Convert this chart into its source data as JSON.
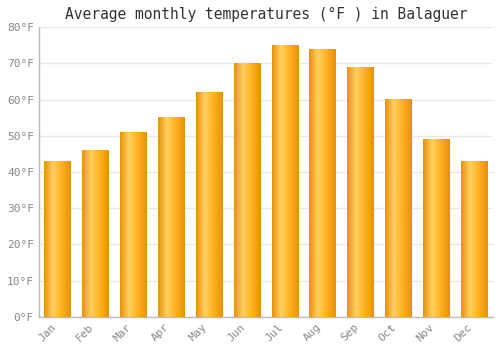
{
  "title": "Average monthly temperatures (°F ) in Balaguer",
  "months": [
    "Jan",
    "Feb",
    "Mar",
    "Apr",
    "May",
    "Jun",
    "Jul",
    "Aug",
    "Sep",
    "Oct",
    "Nov",
    "Dec"
  ],
  "values": [
    43,
    46,
    51,
    55,
    62,
    70,
    75,
    74,
    69,
    60,
    49,
    43
  ],
  "bar_color_left": "#FFB800",
  "bar_color_right": "#FF9500",
  "bar_color_mid": "#FFD060",
  "background_color": "#FFFFFF",
  "plot_bg_color": "#FFFFFF",
  "grid_color": "#E8E8E8",
  "ylim": [
    0,
    80
  ],
  "yticks": [
    0,
    10,
    20,
    30,
    40,
    50,
    60,
    70,
    80
  ],
  "ytick_labels": [
    "0°F",
    "10°F",
    "20°F",
    "30°F",
    "40°F",
    "50°F",
    "60°F",
    "70°F",
    "80°F"
  ],
  "title_fontsize": 10.5,
  "tick_fontsize": 8,
  "tick_color": "#888888",
  "font_family": "monospace",
  "bar_width": 0.7
}
